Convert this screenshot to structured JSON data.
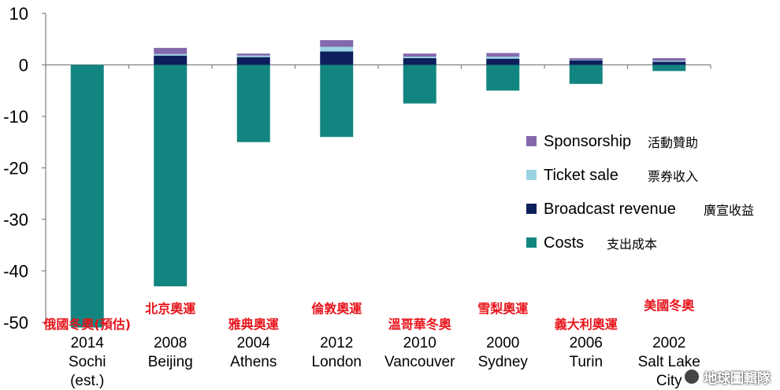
{
  "chart_data": {
    "type": "bar",
    "stacked": true,
    "categories": [
      {
        "year": "2014",
        "city": "Sochi",
        "note": "(est.)",
        "zh": "俄國冬奧(預估)"
      },
      {
        "year": "2008",
        "city": "Beijing",
        "note": "",
        "zh": "北京奧運"
      },
      {
        "year": "2004",
        "city": "Athens",
        "note": "",
        "zh": "雅典奧運"
      },
      {
        "year": "2012",
        "city": "London",
        "note": "",
        "zh": "倫敦奧運"
      },
      {
        "year": "2010",
        "city": "Vancouver",
        "note": "",
        "zh": "溫哥華冬奧"
      },
      {
        "year": "2000",
        "city": "Sydney",
        "note": "",
        "zh": "雪梨奧運"
      },
      {
        "year": "2006",
        "city": "Turin",
        "note": "",
        "zh": "義大利奧運"
      },
      {
        "year": "2002",
        "city": "Salt Lake City",
        "note": "",
        "zh": "美國冬奧"
      }
    ],
    "series": [
      {
        "name": "Costs",
        "zh": "支出成本",
        "color": "#138580",
        "values": [
          -51,
          -43,
          -15,
          -14,
          -7.5,
          -5,
          -3.7,
          -1.2
        ]
      },
      {
        "name": "Broadcast revenue",
        "zh": "廣宣收益",
        "color": "#0c1f5c",
        "values": [
          0,
          1.8,
          1.5,
          2.6,
          1.3,
          1.2,
          0.9,
          0.6
        ]
      },
      {
        "name": "Ticket sale",
        "zh": "票券收入",
        "color": "#9ad3e2",
        "values": [
          0,
          0.3,
          0.3,
          0.9,
          0.3,
          0.4,
          0.1,
          0.2
        ]
      },
      {
        "name": "Sponsorship",
        "zh": "活動贊助",
        "color": "#8468ac",
        "values": [
          0,
          1.2,
          0.4,
          1.3,
          0.6,
          0.7,
          0.3,
          0.5
        ]
      }
    ],
    "ylim": [
      -50,
      10
    ],
    "yticks": [
      "10",
      "0",
      "-10",
      "-20",
      "-30",
      "-40",
      "-50"
    ],
    "grid": false,
    "legend_position": "right",
    "legend_order": [
      "Sponsorship",
      "Ticket sale",
      "Broadcast revenue",
      "Costs"
    ]
  },
  "watermark": "地球圖輯隊"
}
